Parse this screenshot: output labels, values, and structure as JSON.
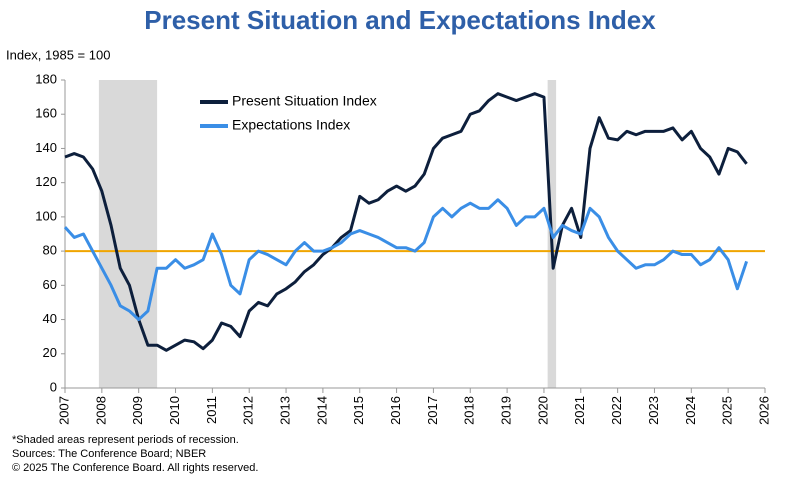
{
  "chart_data": {
    "type": "line",
    "title": "Present Situation and Expectations Index",
    "y_label": "Index, 1985 = 100",
    "x": [
      2007,
      2007.25,
      2007.5,
      2007.75,
      2008,
      2008.25,
      2008.5,
      2008.75,
      2009,
      2009.25,
      2009.5,
      2009.75,
      2010,
      2010.25,
      2010.5,
      2010.75,
      2011,
      2011.25,
      2011.5,
      2011.75,
      2012,
      2012.25,
      2012.5,
      2012.75,
      2013,
      2013.25,
      2013.5,
      2013.75,
      2014,
      2014.25,
      2014.5,
      2014.75,
      2015,
      2015.25,
      2015.5,
      2015.75,
      2016,
      2016.25,
      2016.5,
      2016.75,
      2017,
      2017.25,
      2017.5,
      2017.75,
      2018,
      2018.25,
      2018.5,
      2018.75,
      2019,
      2019.25,
      2019.5,
      2019.75,
      2020,
      2020.25,
      2020.5,
      2020.75,
      2021,
      2021.25,
      2021.5,
      2021.75,
      2022,
      2022.25,
      2022.5,
      2022.75,
      2023,
      2023.25,
      2023.5,
      2023.75,
      2024,
      2024.25,
      2024.5,
      2024.75,
      2025,
      2025.25,
      2025.5
    ],
    "series": [
      {
        "name": "Present Situation Index",
        "color": "#0d1f3c",
        "values": [
          135,
          137,
          135,
          128,
          115,
          95,
          70,
          60,
          40,
          25,
          25,
          22,
          25,
          28,
          27,
          23,
          28,
          38,
          36,
          30,
          45,
          50,
          48,
          55,
          58,
          62,
          68,
          72,
          78,
          82,
          88,
          92,
          112,
          108,
          110,
          115,
          118,
          115,
          118,
          125,
          140,
          146,
          148,
          150,
          160,
          162,
          168,
          172,
          170,
          168,
          170,
          172,
          170,
          70,
          95,
          105,
          88,
          140,
          158,
          146,
          145,
          150,
          148,
          150,
          150,
          150,
          152,
          145,
          150,
          140,
          135,
          125,
          140,
          138,
          131
        ]
      },
      {
        "name": "Expectations Index",
        "color": "#3a8ee6",
        "values": [
          94,
          88,
          90,
          80,
          70,
          60,
          48,
          45,
          40,
          45,
          70,
          70,
          75,
          70,
          72,
          75,
          90,
          78,
          60,
          55,
          75,
          80,
          78,
          75,
          72,
          80,
          85,
          80,
          80,
          82,
          85,
          90,
          92,
          90,
          88,
          85,
          82,
          82,
          80,
          85,
          100,
          105,
          100,
          105,
          108,
          105,
          105,
          110,
          105,
          95,
          100,
          100,
          105,
          88,
          95,
          92,
          90,
          105,
          100,
          88,
          80,
          75,
          70,
          72,
          72,
          75,
          80,
          78,
          78,
          72,
          75,
          82,
          75,
          58,
          74
        ]
      }
    ],
    "recessions": [
      [
        2007.92,
        2009.5
      ],
      [
        2020.1,
        2020.33
      ]
    ],
    "reference_line": {
      "value": 80,
      "color": "#f0a500"
    },
    "recession_color": "#d9d9d9",
    "xlim": [
      2007,
      2026
    ],
    "xticks": [
      2007,
      2008,
      2009,
      2010,
      2011,
      2012,
      2013,
      2014,
      2015,
      2016,
      2017,
      2018,
      2019,
      2020,
      2021,
      2022,
      2023,
      2024,
      2025,
      2026
    ],
    "ylim": [
      0,
      180
    ],
    "yticks": [
      0,
      20,
      40,
      60,
      80,
      100,
      120,
      140,
      160,
      180
    ],
    "notes": [
      "*Shaded areas represent periods of recession.",
      "Sources:  The Conference Board;  NBER",
      "© 2025 The Conference Board. All rights reserved."
    ]
  }
}
